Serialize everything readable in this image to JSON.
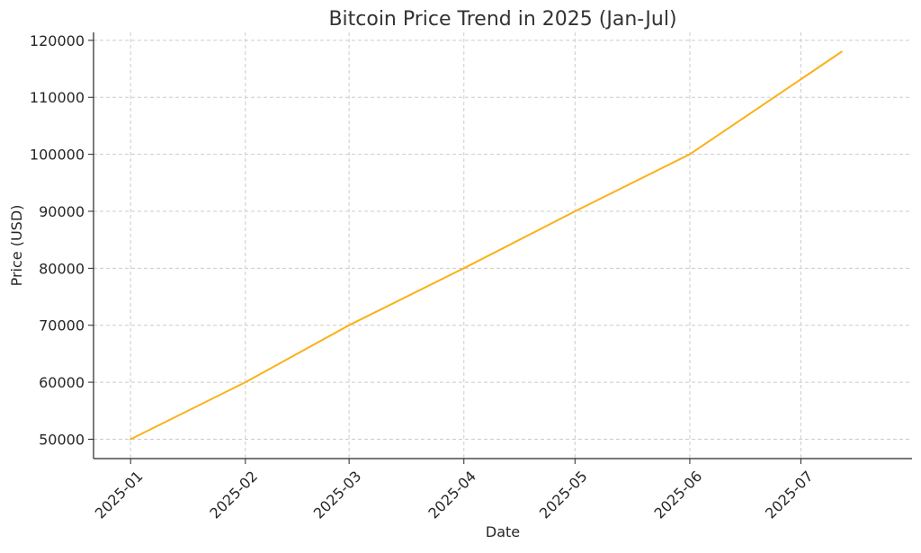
{
  "chart_data": {
    "type": "line",
    "title": "Bitcoin Price Trend in 2025 (Jan-Jul)",
    "xlabel": "Date",
    "ylabel": "Price (USD)",
    "x_ticks": [
      "2025-01",
      "2025-02",
      "2025-03",
      "2025-04",
      "2025-05",
      "2025-06",
      "2025-07"
    ],
    "y_ticks": [
      "50000",
      "60000",
      "70000",
      "80000",
      "90000",
      "100000",
      "110000",
      "120000"
    ],
    "xlim": [
      "2024-12-22",
      "2025-07-31"
    ],
    "ylim": [
      46600,
      121400
    ],
    "grid": true,
    "line_color": "#fbb117",
    "series": [
      {
        "points": [
          {
            "x": "2025-01-01",
            "y": 50000
          },
          {
            "x": "2025-02-01",
            "y": 60000
          },
          {
            "x": "2025-03-01",
            "y": 70000
          },
          {
            "x": "2025-04-01",
            "y": 80000
          },
          {
            "x": "2025-05-01",
            "y": 90000
          },
          {
            "x": "2025-06-01",
            "y": 100000
          },
          {
            "x": "2025-07-12",
            "y": 118000
          }
        ]
      }
    ]
  }
}
